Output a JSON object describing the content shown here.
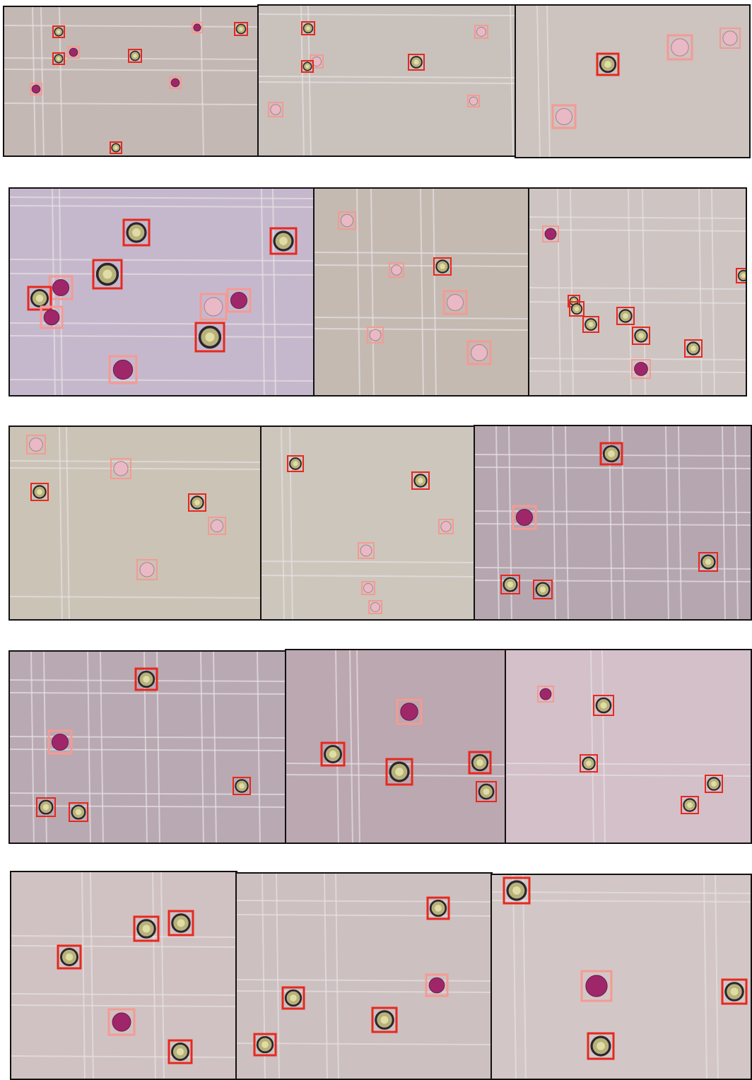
{
  "figure": {
    "colors": {
      "viable_box": "#e8281e",
      "nonviable_box": "#f59a94",
      "frame": "#111111",
      "grid_line": "#e6e2e4",
      "viable_cell_ring": "#2a2630",
      "nonviable_cell_fill": "#a0266a",
      "ghost_cell_fill": "#e9b9c6"
    },
    "cell_classes": [
      "viable",
      "nonviable",
      "ghost"
    ],
    "rows": [
      {
        "panels": [
          {
            "background": "#c4b8b4",
            "grid": "sparse"
          },
          {
            "background": "#c9c1bc",
            "grid": "sparse"
          },
          {
            "background": "#cdc3bf",
            "grid": "sparse"
          }
        ]
      },
      {
        "panels": [
          {
            "background": "#c6b8cc",
            "grid": "dense"
          },
          {
            "background": "#c4bab2",
            "grid": "sparse"
          },
          {
            "background": "#cec4c2",
            "grid": "dense"
          }
        ]
      },
      {
        "panels": [
          {
            "background": "#cbc3b6",
            "grid": "sparse"
          },
          {
            "background": "#cdc6bc",
            "grid": "sparse"
          },
          {
            "background": "#b6a6b0",
            "grid": "dense"
          }
        ]
      },
      {
        "panels": [
          {
            "background": "#b9a9b2",
            "grid": "dense"
          },
          {
            "background": "#bba8b0",
            "grid": "sparse"
          },
          {
            "background": "#d3c0c8",
            "grid": "sparse"
          }
        ]
      },
      {
        "panels": [
          {
            "background": "#d0c2c2",
            "grid": "sparse"
          },
          {
            "background": "#ccc0c0",
            "grid": "sparse"
          },
          {
            "background": "#d2c7c6",
            "grid": "sparse"
          }
        ]
      }
    ]
  }
}
